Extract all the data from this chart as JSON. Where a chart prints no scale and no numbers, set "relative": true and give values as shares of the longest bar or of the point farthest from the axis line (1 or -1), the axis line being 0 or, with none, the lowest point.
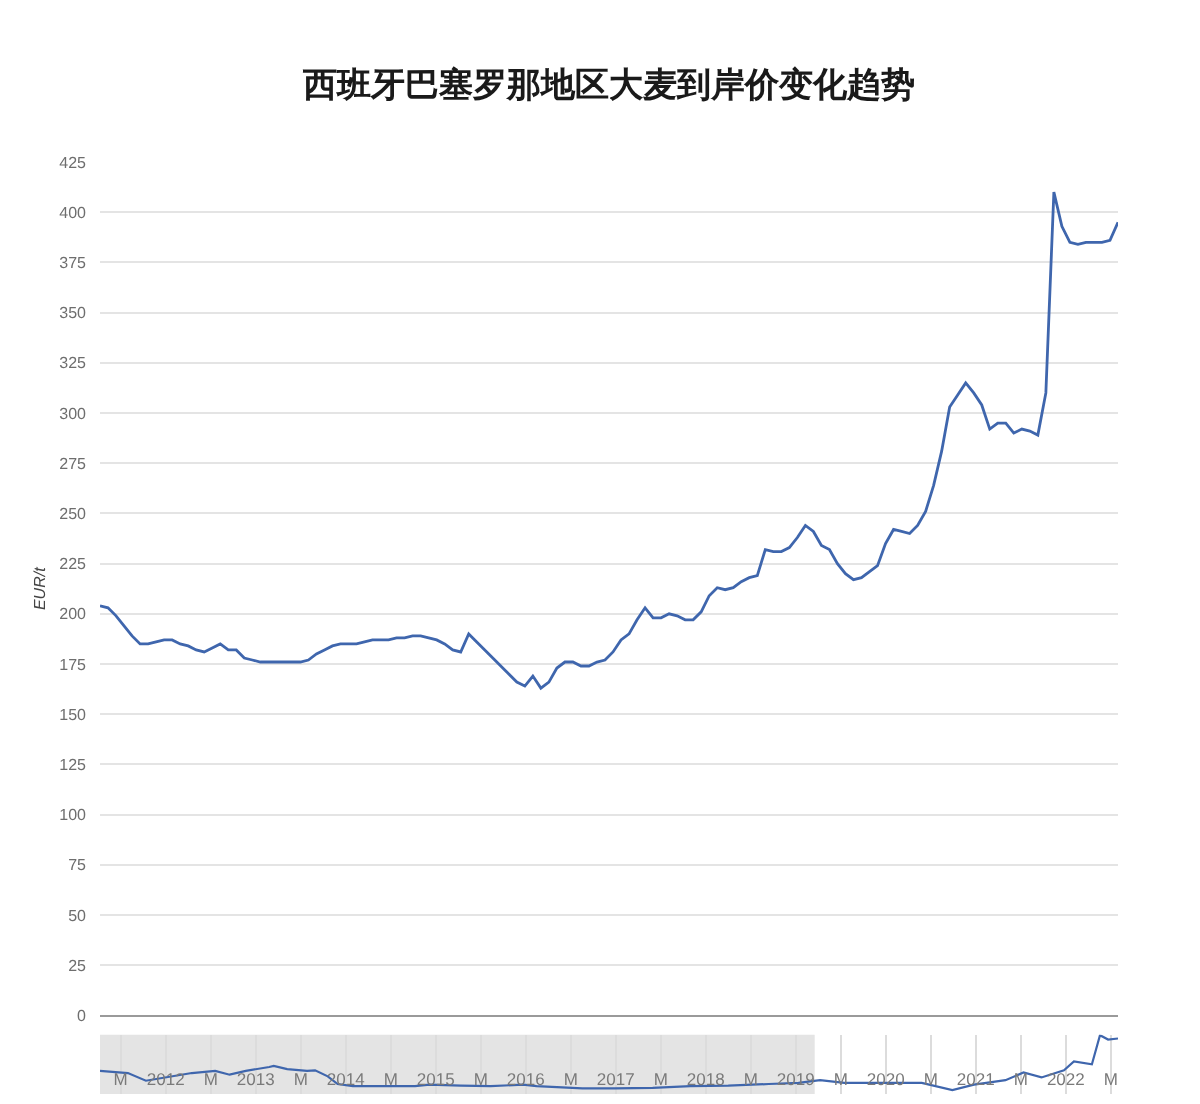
{
  "chart_data": [
    {
      "type": "line",
      "title": "西班牙巴塞罗那地区大麦到岸价变化趋势",
      "ylabel": "EUR/t",
      "categories": [
        null,
        null,
        null,
        null,
        null,
        null,
        null,
        null,
        null,
        null,
        null,
        null,
        null,
        null,
        null,
        null,
        null,
        null,
        null,
        null,
        null,
        null,
        null,
        null,
        null,
        null,
        null,
        null,
        null,
        null,
        null,
        null,
        null,
        null,
        null,
        null,
        null,
        null,
        null,
        null,
        null,
        null,
        null,
        null,
        null,
        null,
        null,
        null,
        null,
        null,
        null,
        null,
        null,
        null,
        null,
        null,
        null,
        null,
        null,
        null,
        null,
        null,
        null,
        null,
        null,
        null,
        null,
        null,
        null,
        null,
        null,
        null,
        null,
        null,
        null,
        null,
        null,
        null,
        null,
        null,
        null,
        null,
        null,
        null,
        null,
        null,
        null,
        null,
        null,
        null,
        null,
        null,
        null,
        null,
        null,
        null,
        null,
        null,
        null,
        null,
        null,
        null,
        null,
        null,
        null,
        null,
        null,
        null,
        null,
        null,
        null,
        null,
        null,
        null,
        null,
        null,
        null,
        null,
        null,
        null,
        null,
        null,
        null,
        null,
        null,
        null,
        null,
        null
      ],
      "series": [
        {
          "color": "#3f66ad",
          "values": [
            204,
            203,
            199,
            194,
            189,
            185,
            185,
            186,
            187,
            187,
            185,
            184,
            182,
            181,
            183,
            185,
            182,
            182,
            178,
            177,
            176,
            176,
            176,
            176,
            176,
            176,
            177,
            180,
            182,
            184,
            185,
            185,
            185,
            186,
            187,
            187,
            187,
            188,
            188,
            189,
            189,
            188,
            187,
            185,
            182,
            181,
            190,
            186,
            182,
            178,
            174,
            170,
            166,
            164,
            169,
            163,
            166,
            173,
            176,
            176,
            174,
            174,
            176,
            177,
            181,
            187,
            190,
            197,
            203,
            198,
            198,
            200,
            199,
            197,
            197,
            201,
            209,
            213,
            212,
            213,
            216,
            218,
            219,
            232,
            231,
            231,
            233,
            238,
            244,
            241,
            234,
            232,
            225,
            220,
            217,
            218,
            221,
            224,
            235,
            242,
            241,
            240,
            244,
            251,
            264,
            281,
            303,
            309,
            315,
            310,
            304,
            292,
            295,
            295,
            290,
            292,
            291,
            289,
            310,
            410,
            393,
            385,
            384,
            385,
            385,
            385,
            386,
            395
          ]
        }
      ],
      "ylim": [
        0,
        425
      ],
      "yticks": [
        0,
        25,
        50,
        75,
        100,
        125,
        150,
        175,
        200,
        225,
        250,
        275,
        300,
        325,
        350,
        375,
        400,
        425
      ],
      "grid": "y"
    },
    {
      "type": "line",
      "relative": true,
      "x": [
        2011.27,
        2011.58,
        2011.78,
        2012.29,
        2012.55,
        2012.71,
        2012.89,
        2013.15,
        2013.2,
        2013.35,
        2013.57,
        2013.66,
        2013.8,
        2013.91,
        2014.08,
        2014.77,
        2014.93,
        2015.28,
        2015.61,
        2015.97,
        2016.12,
        2016.63,
        2016.99,
        2017.41,
        2017.83,
        2018.25,
        2018.7,
        2019.03,
        2019.27,
        2019.54,
        2019.96,
        2020.4,
        2020.74,
        2020.98,
        2021.33,
        2021.53,
        2021.73,
        2021.98,
        2022.09,
        2022.29,
        2022.38,
        2022.47,
        2022.58
      ],
      "series": [
        {
          "color": "#3f66ad",
          "values": [
            0.35,
            0.31,
            0.17,
            0.31,
            0.35,
            0.28,
            0.35,
            0.42,
            0.44,
            0.38,
            0.35,
            0.36,
            0.25,
            0.11,
            0.07,
            0.07,
            0.1,
            0.08,
            0.07,
            0.1,
            0.07,
            0.03,
            0.03,
            0.04,
            0.07,
            0.08,
            0.11,
            0.13,
            0.18,
            0.13,
            0.13,
            0.13,
            0,
            0.1,
            0.18,
            0.32,
            0.23,
            0.36,
            0.52,
            0.47,
            1,
            0.92,
            0.94
          ]
        }
      ],
      "xlim": [
        2011.27,
        2022.58
      ],
      "xticks": [
        {
          "value": 2011.5,
          "label": "M"
        },
        2012,
        {
          "value": 2012.5,
          "label": "M"
        },
        2013,
        {
          "value": 2013.5,
          "label": "M"
        },
        2014,
        {
          "value": 2014.5,
          "label": "M"
        },
        2015,
        {
          "value": 2015.5,
          "label": "M"
        },
        2016,
        {
          "value": 2016.5,
          "label": "M"
        },
        2017,
        {
          "value": 2017.5,
          "label": "M"
        },
        2018,
        {
          "value": 2018.5,
          "label": "M"
        },
        2019,
        {
          "value": 2019.5,
          "label": "M"
        },
        2020,
        {
          "value": 2020.5,
          "label": "M"
        },
        2021,
        {
          "value": 2021.5,
          "label": "M"
        },
        2022,
        {
          "value": 2022.5,
          "label": "M"
        }
      ],
      "grid": "x",
      "tick_labels": "x",
      "bands": [
        {
          "axis": "x",
          "from": 2011.27,
          "to": 2019.21,
          "color": "#e4e4e4"
        }
      ]
    }
  ]
}
